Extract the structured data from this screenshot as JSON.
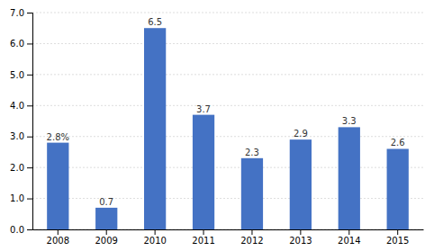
{
  "chart_data": {
    "type": "bar",
    "categories": [
      "2008",
      "2009",
      "2010",
      "2011",
      "2012",
      "2013",
      "2014",
      "2015"
    ],
    "values": [
      2.8,
      0.7,
      6.5,
      3.7,
      2.3,
      2.9,
      3.3,
      2.6
    ],
    "value_labels": [
      "2.8%",
      "0.7",
      "6.5",
      "3.7",
      "2.3",
      "2.9",
      "3.3",
      "2.6"
    ],
    "data_labels": true,
    "color": "#4472C4",
    "ylim": [
      0.0,
      7.0
    ],
    "yticks": [
      {
        "value": 0.0,
        "label": "0.0"
      },
      {
        "value": 1.0,
        "label": "1.0"
      },
      {
        "value": 2.0,
        "label": "2.0"
      },
      {
        "value": 3.0,
        "label": "3.0"
      },
      {
        "value": 4.0,
        "label": "4.0"
      },
      {
        "value": 5.0,
        "label": "5.0"
      },
      {
        "value": 6.0,
        "label": "6.0"
      },
      {
        "value": 7.0,
        "label": "7.0"
      }
    ],
    "grid": true
  }
}
